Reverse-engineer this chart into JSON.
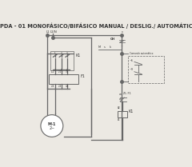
{
  "title": "PDA - 01 MONOFÁSICO/BIFÁSICO MANUAL / DESLIG./ AUTOMÁTICO",
  "title_fontsize": 4.8,
  "bg_color": "#ece9e3",
  "line_color": "#666666",
  "line_width": 0.9,
  "thin_line": 0.6,
  "text_color": "#333333",
  "label_fontsize": 3.5,
  "small_fontsize": 2.8
}
